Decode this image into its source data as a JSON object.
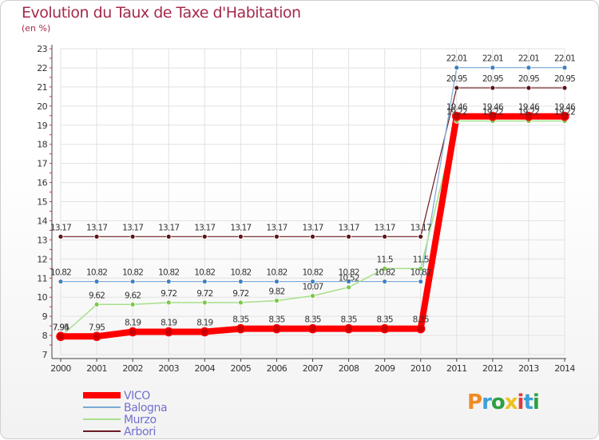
{
  "header": {
    "title": "Evolution du Taux de Taxe d'Habitation",
    "subtitle": "(en %)"
  },
  "logo": {
    "text": "Proxiti",
    "colors": [
      "#f08a24",
      "#3aa0d8",
      "#2ea043",
      "#f0c020",
      "#e03a3a",
      "#3aa0d8",
      "#2ea043"
    ]
  },
  "chart_data": {
    "type": "line",
    "x": [
      2000,
      2001,
      2002,
      2003,
      2004,
      2005,
      2006,
      2007,
      2008,
      2009,
      2010,
      2011,
      2012,
      2013,
      2014
    ],
    "xlim": [
      2000,
      2014
    ],
    "ylim": [
      7,
      23
    ],
    "yticks": [
      7,
      8,
      9,
      10,
      11,
      12,
      13,
      14,
      15,
      16,
      17,
      18,
      19,
      20,
      21,
      22,
      23
    ],
    "grid": true,
    "legend_position": "bottom-left",
    "series": [
      {
        "name": "Arbori",
        "color": "#6b1a22",
        "marker_fill": "#5c1418",
        "width": 1.2,
        "values": [
          13.17,
          13.17,
          13.17,
          13.17,
          13.17,
          13.17,
          13.17,
          13.17,
          13.17,
          13.17,
          13.17,
          20.95,
          20.95,
          20.95,
          20.95
        ],
        "labels": [
          "13.17",
          "13.17",
          "13.17",
          "13.17",
          "13.17",
          "13.17",
          "13.17",
          "13.17",
          "13.17",
          "13.17",
          "13.17",
          "20.95",
          "20.95",
          "20.95",
          "20.95"
        ]
      },
      {
        "name": "Balogna",
        "color": "#7aaad8",
        "marker_fill": "#3f7fc0",
        "width": 1.2,
        "values": [
          10.82,
          10.82,
          10.82,
          10.82,
          10.82,
          10.82,
          10.82,
          10.82,
          10.82,
          10.82,
          10.82,
          22.01,
          22.01,
          22.01,
          22.01
        ],
        "labels": [
          "10.82",
          "10.82",
          "10.82",
          "10.82",
          "10.82",
          "10.82",
          "10.82",
          "10.82",
          "10.82",
          "10.82",
          "10.82",
          "22.01",
          "22.01",
          "22.01",
          "22.01"
        ]
      },
      {
        "name": "Murzo",
        "color": "#a6e08a",
        "marker_fill": "#7cc84a",
        "width": 1.5,
        "values": [
          7.94,
          9.62,
          9.62,
          9.72,
          9.72,
          9.72,
          9.82,
          10.07,
          10.52,
          11.5,
          11.5,
          19.22,
          19.22,
          19.22,
          19.22
        ],
        "labels": [
          "7.94",
          "9.62",
          "9.62",
          "9.72",
          "9.72",
          "9.72",
          "9.82",
          "10.07",
          "10.52",
          "11.5",
          "11.5",
          "19.22",
          "19.22",
          "19.22",
          "19.22"
        ]
      },
      {
        "name": "VICO",
        "color": "#ff0000",
        "marker_fill": "#cc0000",
        "width": 8,
        "values": [
          7.95,
          7.95,
          8.19,
          8.19,
          8.19,
          8.35,
          8.35,
          8.35,
          8.35,
          8.35,
          8.35,
          19.46,
          19.46,
          19.46,
          19.46
        ],
        "labels": [
          "7.95",
          "7.95",
          "8.19",
          "8.19",
          "8.19",
          "8.35",
          "8.35",
          "8.35",
          "8.35",
          "8.35",
          "8.35",
          "19.46",
          "19.46",
          "19.46",
          "19.46"
        ]
      }
    ],
    "legend": [
      {
        "name": "VICO",
        "color": "#ff0000",
        "text_color": "#7070d0",
        "width": 8
      },
      {
        "name": "Balogna",
        "color": "#7aaad8",
        "text_color": "#7070d0",
        "width": 2
      },
      {
        "name": "Murzo",
        "color": "#a6e08a",
        "text_color": "#7070d0",
        "width": 2
      },
      {
        "name": "Arbori",
        "color": "#6b1a22",
        "text_color": "#7070d0",
        "width": 2
      }
    ]
  }
}
